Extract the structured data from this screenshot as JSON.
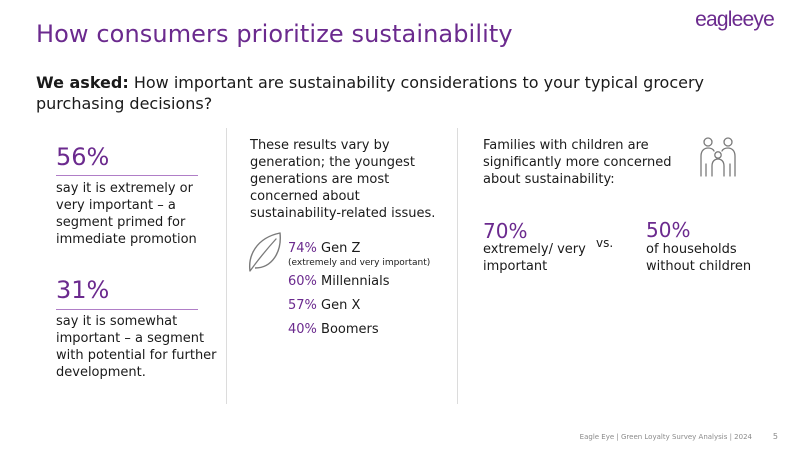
{
  "brand": {
    "logo_part1": "eagle",
    "logo_part2": "eye"
  },
  "title": "How consumers prioritize sustainability",
  "question": {
    "label": "We asked:",
    "text": " How important are sustainability considerations to your typical grocery purchasing decisions?"
  },
  "left": {
    "stats": [
      {
        "value": "56%",
        "text": "say it is extremely or very important – a segment primed for immediate promotion"
      },
      {
        "value": "31%",
        "text": "say it is somewhat important – a segment with potential for further development."
      }
    ]
  },
  "middle": {
    "intro": "These results vary by generation; the youngest generations are most concerned about sustainability-related issues.",
    "icon": "leaf-icon",
    "generations": [
      {
        "pct": "74%",
        "label": " Gen Z"
      },
      {
        "pct": "60%",
        "label": " Millennials"
      },
      {
        "pct": "57%",
        "label": " Gen X"
      },
      {
        "pct": "40%",
        "label": " Boomers"
      }
    ],
    "note": "(extremely and very important)"
  },
  "right": {
    "intro": "Families with children are significantly more concerned about sustainability:",
    "icon": "family-icon",
    "compare_a": {
      "value": "70%",
      "text": "extremely/ very important"
    },
    "vs": "vs.",
    "compare_b": {
      "value": "50%",
      "text": "of households without children"
    }
  },
  "footer": {
    "text": "Eagle Eye |  Green Loyalty Survey Analysis | 2024",
    "page": "5"
  },
  "colors": {
    "accent": "#6b2a8e",
    "text": "#1a1a1a",
    "divider": "#dcdcdc"
  }
}
